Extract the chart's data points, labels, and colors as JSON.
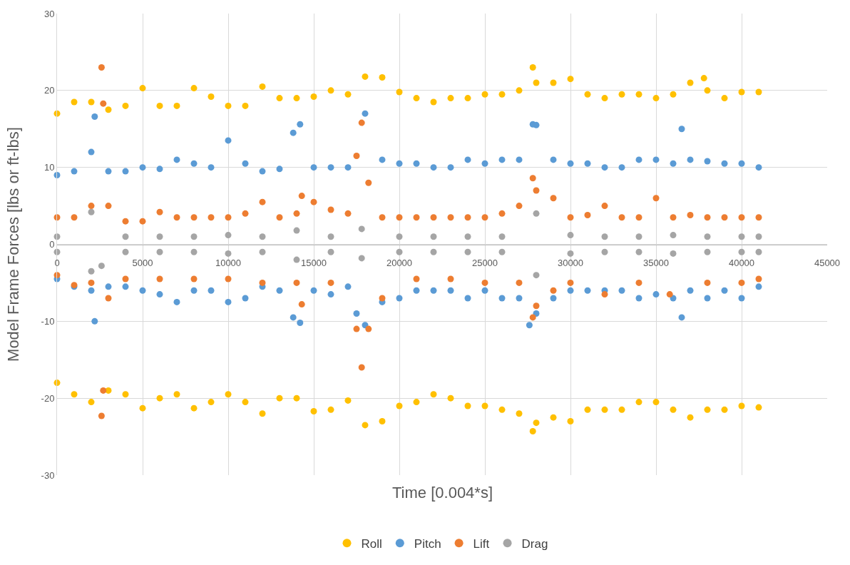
{
  "chart_data": {
    "type": "scatter",
    "xlabel": "Time [0.004*s]",
    "ylabel": "Model Frame Forces [lbs or ft-lbs]",
    "xlim": [
      0,
      45000
    ],
    "ylim": [
      -30,
      30
    ],
    "xticks": [
      0,
      5000,
      10000,
      15000,
      20000,
      25000,
      30000,
      35000,
      40000,
      45000
    ],
    "yticks": [
      -30,
      -20,
      -10,
      0,
      10,
      20,
      30
    ],
    "grid": true,
    "legend": "bottom",
    "marker": "circle",
    "series": [
      {
        "name": "Roll",
        "color": "#ffc000",
        "x": [
          0,
          1000,
          2000,
          3000,
          4000,
          5000,
          6000,
          7000,
          8000,
          9000,
          10000,
          11000,
          12000,
          13000,
          14000,
          15000,
          16000,
          17000,
          18000,
          19000,
          20000,
          21000,
          22000,
          23000,
          24000,
          25000,
          26000,
          27000,
          27800,
          28000,
          29000,
          30000,
          31000,
          32000,
          33000,
          34000,
          35000,
          36000,
          37000,
          37800,
          38000,
          39000,
          40000,
          41000,
          0,
          1000,
          2000,
          3000,
          4000,
          5000,
          6000,
          7000,
          8000,
          9000,
          10000,
          11000,
          12000,
          13000,
          14000,
          15000,
          16000,
          17000,
          18000,
          19000,
          20000,
          21000,
          22000,
          23000,
          24000,
          25000,
          26000,
          27000,
          27800,
          28000,
          29000,
          30000,
          31000,
          32000,
          33000,
          34000,
          35000,
          36000,
          37000,
          38000,
          39000,
          40000,
          41000
        ],
        "values": [
          17,
          18.5,
          18.5,
          17.5,
          18,
          20.3,
          18,
          18,
          20.3,
          19.2,
          18,
          18,
          20.5,
          19,
          19,
          19.2,
          20,
          19.5,
          21.8,
          21.7,
          19.8,
          19,
          18.5,
          19,
          19,
          19.5,
          19.5,
          20,
          23,
          21,
          21,
          21.5,
          19.5,
          19,
          19.5,
          19.5,
          19,
          19.5,
          21,
          21.6,
          20,
          19,
          19.8,
          19.8,
          -18,
          -19.5,
          -20.5,
          -19,
          -19.5,
          -21.3,
          -20,
          -19.5,
          -21.3,
          -20.5,
          -19.5,
          -20.5,
          -22,
          -20,
          -20,
          -21.7,
          -21.5,
          -20.3,
          -23.5,
          -23,
          -21,
          -20.5,
          -19.5,
          -20,
          -21,
          -21,
          -21.5,
          -22,
          -24.3,
          -23.2,
          -22.5,
          -23,
          -21.5,
          -21.5,
          -21.5,
          -20.5,
          -20.5,
          -21.5,
          -22.5,
          -21.5,
          -21.5,
          -21,
          -21.2
        ]
      },
      {
        "name": "Pitch",
        "color": "#5b9bd5",
        "x": [
          0,
          1000,
          2000,
          2200,
          3000,
          4000,
          5000,
          6000,
          7000,
          8000,
          9000,
          10000,
          11000,
          12000,
          13000,
          13800,
          14200,
          15000,
          16000,
          17000,
          18000,
          19000,
          20000,
          21000,
          22000,
          23000,
          24000,
          25000,
          26000,
          27000,
          27800,
          28000,
          29000,
          30000,
          31000,
          32000,
          33000,
          34000,
          35000,
          36000,
          36500,
          37000,
          38000,
          39000,
          40000,
          41000,
          0,
          1000,
          2000,
          2200,
          3000,
          4000,
          5000,
          6000,
          7000,
          8000,
          9000,
          10000,
          11000,
          12000,
          13000,
          13800,
          14200,
          15000,
          16000,
          17000,
          17500,
          18000,
          19000,
          20000,
          21000,
          22000,
          23000,
          24000,
          25000,
          26000,
          27000,
          27600,
          28000,
          29000,
          30000,
          31000,
          32000,
          33000,
          34000,
          35000,
          36000,
          36500,
          37000,
          38000,
          39000,
          40000,
          41000
        ],
        "values": [
          9,
          9.5,
          12,
          16.6,
          9.5,
          9.5,
          10,
          9.8,
          11,
          10.5,
          10,
          13.5,
          10.5,
          9.5,
          9.8,
          14.5,
          15.6,
          10,
          10,
          10,
          17,
          11,
          10.5,
          10.5,
          10,
          10,
          11,
          10.5,
          11,
          11,
          15.6,
          15.5,
          11,
          10.5,
          10.5,
          10,
          10,
          11,
          11,
          10.5,
          15,
          11,
          10.8,
          10.5,
          10.5,
          10,
          -4.5,
          -5.5,
          -6,
          -10,
          -5.5,
          -5.5,
          -6,
          -6.5,
          -7.5,
          -6,
          -6,
          -7.5,
          -7,
          -5.5,
          -6,
          -9.5,
          -10.2,
          -6,
          -6.5,
          -5.5,
          -9,
          -10.5,
          -7.5,
          -7,
          -6,
          -6,
          -6,
          -7,
          -6,
          -7,
          -7,
          -10.5,
          -9,
          -7,
          -6,
          -6,
          -6,
          -6,
          -7,
          -6.5,
          -7,
          -9.5,
          -6,
          -7,
          -6,
          -7,
          -5.5
        ]
      },
      {
        "name": "Lift",
        "color": "#ed7d31",
        "x": [
          0,
          1000,
          2000,
          2600,
          2700,
          3000,
          4000,
          5000,
          6000,
          7000,
          8000,
          9000,
          10000,
          11000,
          12000,
          13000,
          14000,
          14300,
          15000,
          16000,
          17000,
          17500,
          17800,
          18200,
          19000,
          20000,
          21000,
          22000,
          23000,
          24000,
          25000,
          26000,
          27000,
          27800,
          28000,
          29000,
          30000,
          31000,
          32000,
          33000,
          34000,
          35000,
          36000,
          37000,
          38000,
          39000,
          40000,
          41000,
          0,
          1000,
          2000,
          2600,
          2700,
          3000,
          4000,
          6000,
          8000,
          10000,
          12000,
          14000,
          14300,
          16000,
          17500,
          17800,
          18200,
          19000,
          21000,
          23000,
          25000,
          27000,
          27800,
          28000,
          29000,
          30000,
          32000,
          34000,
          35800,
          38000,
          40000,
          41000
        ],
        "values": [
          3.5,
          3.5,
          5,
          23,
          18.3,
          5,
          3,
          3,
          4.2,
          3.5,
          3.5,
          3.5,
          3.5,
          4,
          5.5,
          3.5,
          4,
          6.3,
          5.5,
          4.5,
          4,
          11.5,
          15.8,
          8,
          3.5,
          3.5,
          3.5,
          3.5,
          3.5,
          3.5,
          3.5,
          4,
          5,
          8.6,
          7,
          6,
          3.5,
          3.8,
          5,
          3.5,
          3.5,
          6,
          3.5,
          3.8,
          3.5,
          3.5,
          3.5,
          3.5,
          -4,
          -5.3,
          -5,
          -22.3,
          -19,
          -7,
          -4.5,
          -4.5,
          -4.5,
          -4.5,
          -5,
          -5,
          -7.8,
          -5,
          -11,
          -16,
          -11,
          -7,
          -4.5,
          -4.5,
          -5,
          -5,
          -9.5,
          -8,
          -6,
          -5,
          -6.5,
          -5,
          -6.5,
          -5,
          -5,
          -4.5
        ]
      },
      {
        "name": "Drag",
        "color": "#a5a5a5",
        "x": [
          0,
          2000,
          4000,
          6000,
          8000,
          10000,
          12000,
          14000,
          16000,
          17800,
          20000,
          22000,
          24000,
          26000,
          28000,
          30000,
          32000,
          34000,
          36000,
          38000,
          40000,
          41000,
          0,
          2000,
          2600,
          4000,
          6000,
          8000,
          10000,
          12000,
          14000,
          16000,
          17800,
          20000,
          22000,
          24000,
          26000,
          28000,
          30000,
          32000,
          34000,
          36000,
          38000,
          40000,
          41000
        ],
        "values": [
          1,
          4.2,
          1,
          1,
          1,
          1.2,
          1,
          1.8,
          1,
          2,
          1,
          1,
          1,
          1,
          4,
          1.2,
          1,
          1,
          1.2,
          1,
          1,
          1,
          -1,
          -3.5,
          -2.8,
          -1,
          -1,
          -1,
          -1.2,
          -1,
          -2,
          -1,
          -1.8,
          -1,
          -1,
          -1,
          -1,
          -4,
          -1.2,
          -1,
          -1,
          -1.2,
          -1,
          -1,
          -1
        ]
      }
    ]
  }
}
